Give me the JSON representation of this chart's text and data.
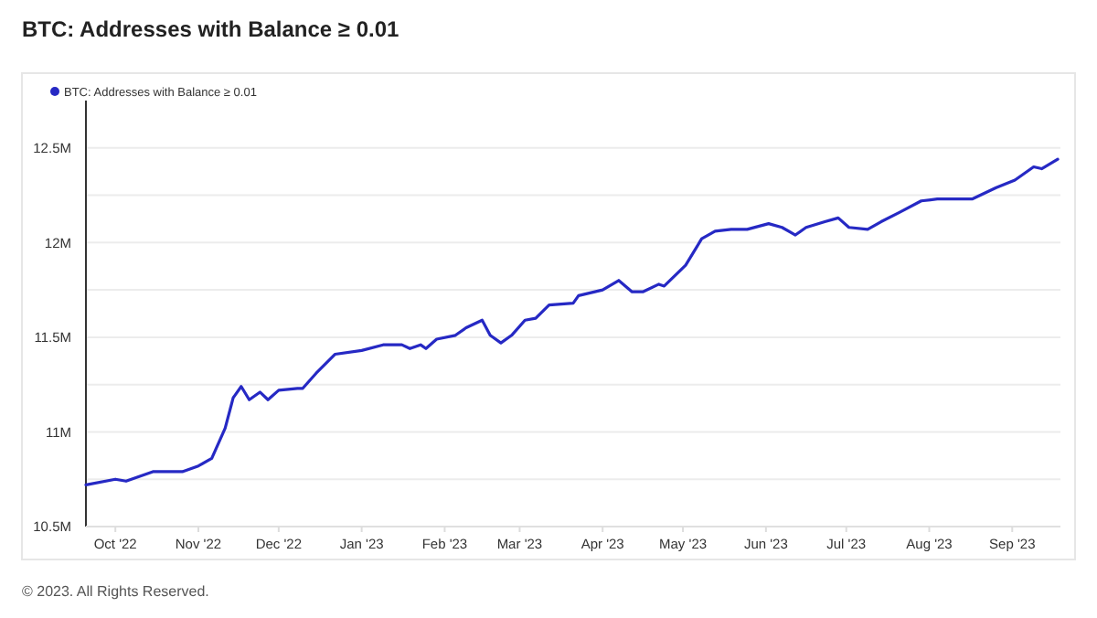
{
  "chart_data": {
    "type": "line",
    "title": "BTC: Addresses with Balance ≥ 0.01",
    "x": [
      "2022-09-20",
      "2022-10-01",
      "2022-10-05",
      "2022-10-15",
      "2022-10-26",
      "2022-11-01",
      "2022-11-06",
      "2022-11-11",
      "2022-11-14",
      "2022-11-17",
      "2022-11-20",
      "2022-11-24",
      "2022-11-27",
      "2022-12-01",
      "2022-12-08",
      "2022-12-10",
      "2022-12-15",
      "2022-12-22",
      "2023-01-01",
      "2023-01-09",
      "2023-01-16",
      "2023-01-19",
      "2023-01-23",
      "2023-01-25",
      "2023-01-29",
      "2023-02-05",
      "2023-02-09",
      "2023-02-15",
      "2023-02-18",
      "2023-02-22",
      "2023-02-26",
      "2023-03-03",
      "2023-03-07",
      "2023-03-12",
      "2023-03-21",
      "2023-03-23",
      "2023-04-01",
      "2023-04-07",
      "2023-04-12",
      "2023-04-16",
      "2023-04-22",
      "2023-04-24",
      "2023-05-02",
      "2023-05-08",
      "2023-05-13",
      "2023-05-19",
      "2023-05-25",
      "2023-06-02",
      "2023-06-07",
      "2023-06-12",
      "2023-06-16",
      "2023-06-23",
      "2023-06-28",
      "2023-07-02",
      "2023-07-09",
      "2023-07-14",
      "2023-07-21",
      "2023-07-29",
      "2023-08-04",
      "2023-08-10",
      "2023-08-17",
      "2023-08-26",
      "2023-09-02",
      "2023-09-09",
      "2023-09-12",
      "2023-09-18"
    ],
    "series": [
      {
        "name": "BTC: Addresses with Balance ≥ 0.01",
        "color": "#2629c4",
        "values": [
          10.72,
          10.75,
          10.74,
          10.79,
          10.79,
          10.82,
          10.86,
          11.02,
          11.18,
          11.24,
          11.17,
          11.21,
          11.17,
          11.22,
          11.23,
          11.23,
          11.31,
          11.41,
          11.43,
          11.46,
          11.46,
          11.44,
          11.46,
          11.44,
          11.49,
          11.51,
          11.55,
          11.59,
          11.51,
          11.47,
          11.51,
          11.59,
          11.6,
          11.67,
          11.68,
          11.72,
          11.75,
          11.8,
          11.74,
          11.74,
          11.78,
          11.77,
          11.88,
          12.02,
          12.06,
          12.07,
          12.07,
          12.1,
          12.08,
          12.04,
          12.08,
          12.11,
          12.13,
          12.08,
          12.07,
          12.11,
          12.16,
          12.22,
          12.23,
          12.23,
          12.23,
          12.29,
          12.33,
          12.4,
          12.39,
          12.44
        ]
      }
    ],
    "xlim": [
      "2022-09-20",
      "2023-09-19"
    ],
    "xticks": [
      {
        "value": "2022-10-01",
        "label": "Oct '22"
      },
      {
        "value": "2022-11-01",
        "label": "Nov '22"
      },
      {
        "value": "2022-12-01",
        "label": "Dec '22"
      },
      {
        "value": "2023-01-01",
        "label": "Jan '23"
      },
      {
        "value": "2023-02-01",
        "label": "Feb '23"
      },
      {
        "value": "2023-03-01",
        "label": "Mar '23"
      },
      {
        "value": "2023-04-01",
        "label": "Apr '23"
      },
      {
        "value": "2023-05-01",
        "label": "May '23"
      },
      {
        "value": "2023-06-01",
        "label": "Jun '23"
      },
      {
        "value": "2023-07-01",
        "label": "Jul '23"
      },
      {
        "value": "2023-08-01",
        "label": "Aug '23"
      },
      {
        "value": "2023-09-01",
        "label": "Sep '23"
      }
    ],
    "ylim": [
      10.5,
      12.75
    ],
    "yticks": [
      {
        "value": 10.5,
        "label": "10.5M"
      },
      {
        "value": 10.75,
        "label": null
      },
      {
        "value": 11,
        "label": "11M"
      },
      {
        "value": 11.25,
        "label": null
      },
      {
        "value": 11.5,
        "label": "11.5M"
      },
      {
        "value": 11.75,
        "label": null
      },
      {
        "value": 12,
        "label": "12M"
      },
      {
        "value": 12.25,
        "label": null
      },
      {
        "value": 12.5,
        "label": "12.5M"
      }
    ],
    "grid": "y",
    "legend": "top left",
    "marker": "none",
    "line_style": "solid",
    "annotations": [
      "© 2023. All Rights Reserved."
    ]
  }
}
